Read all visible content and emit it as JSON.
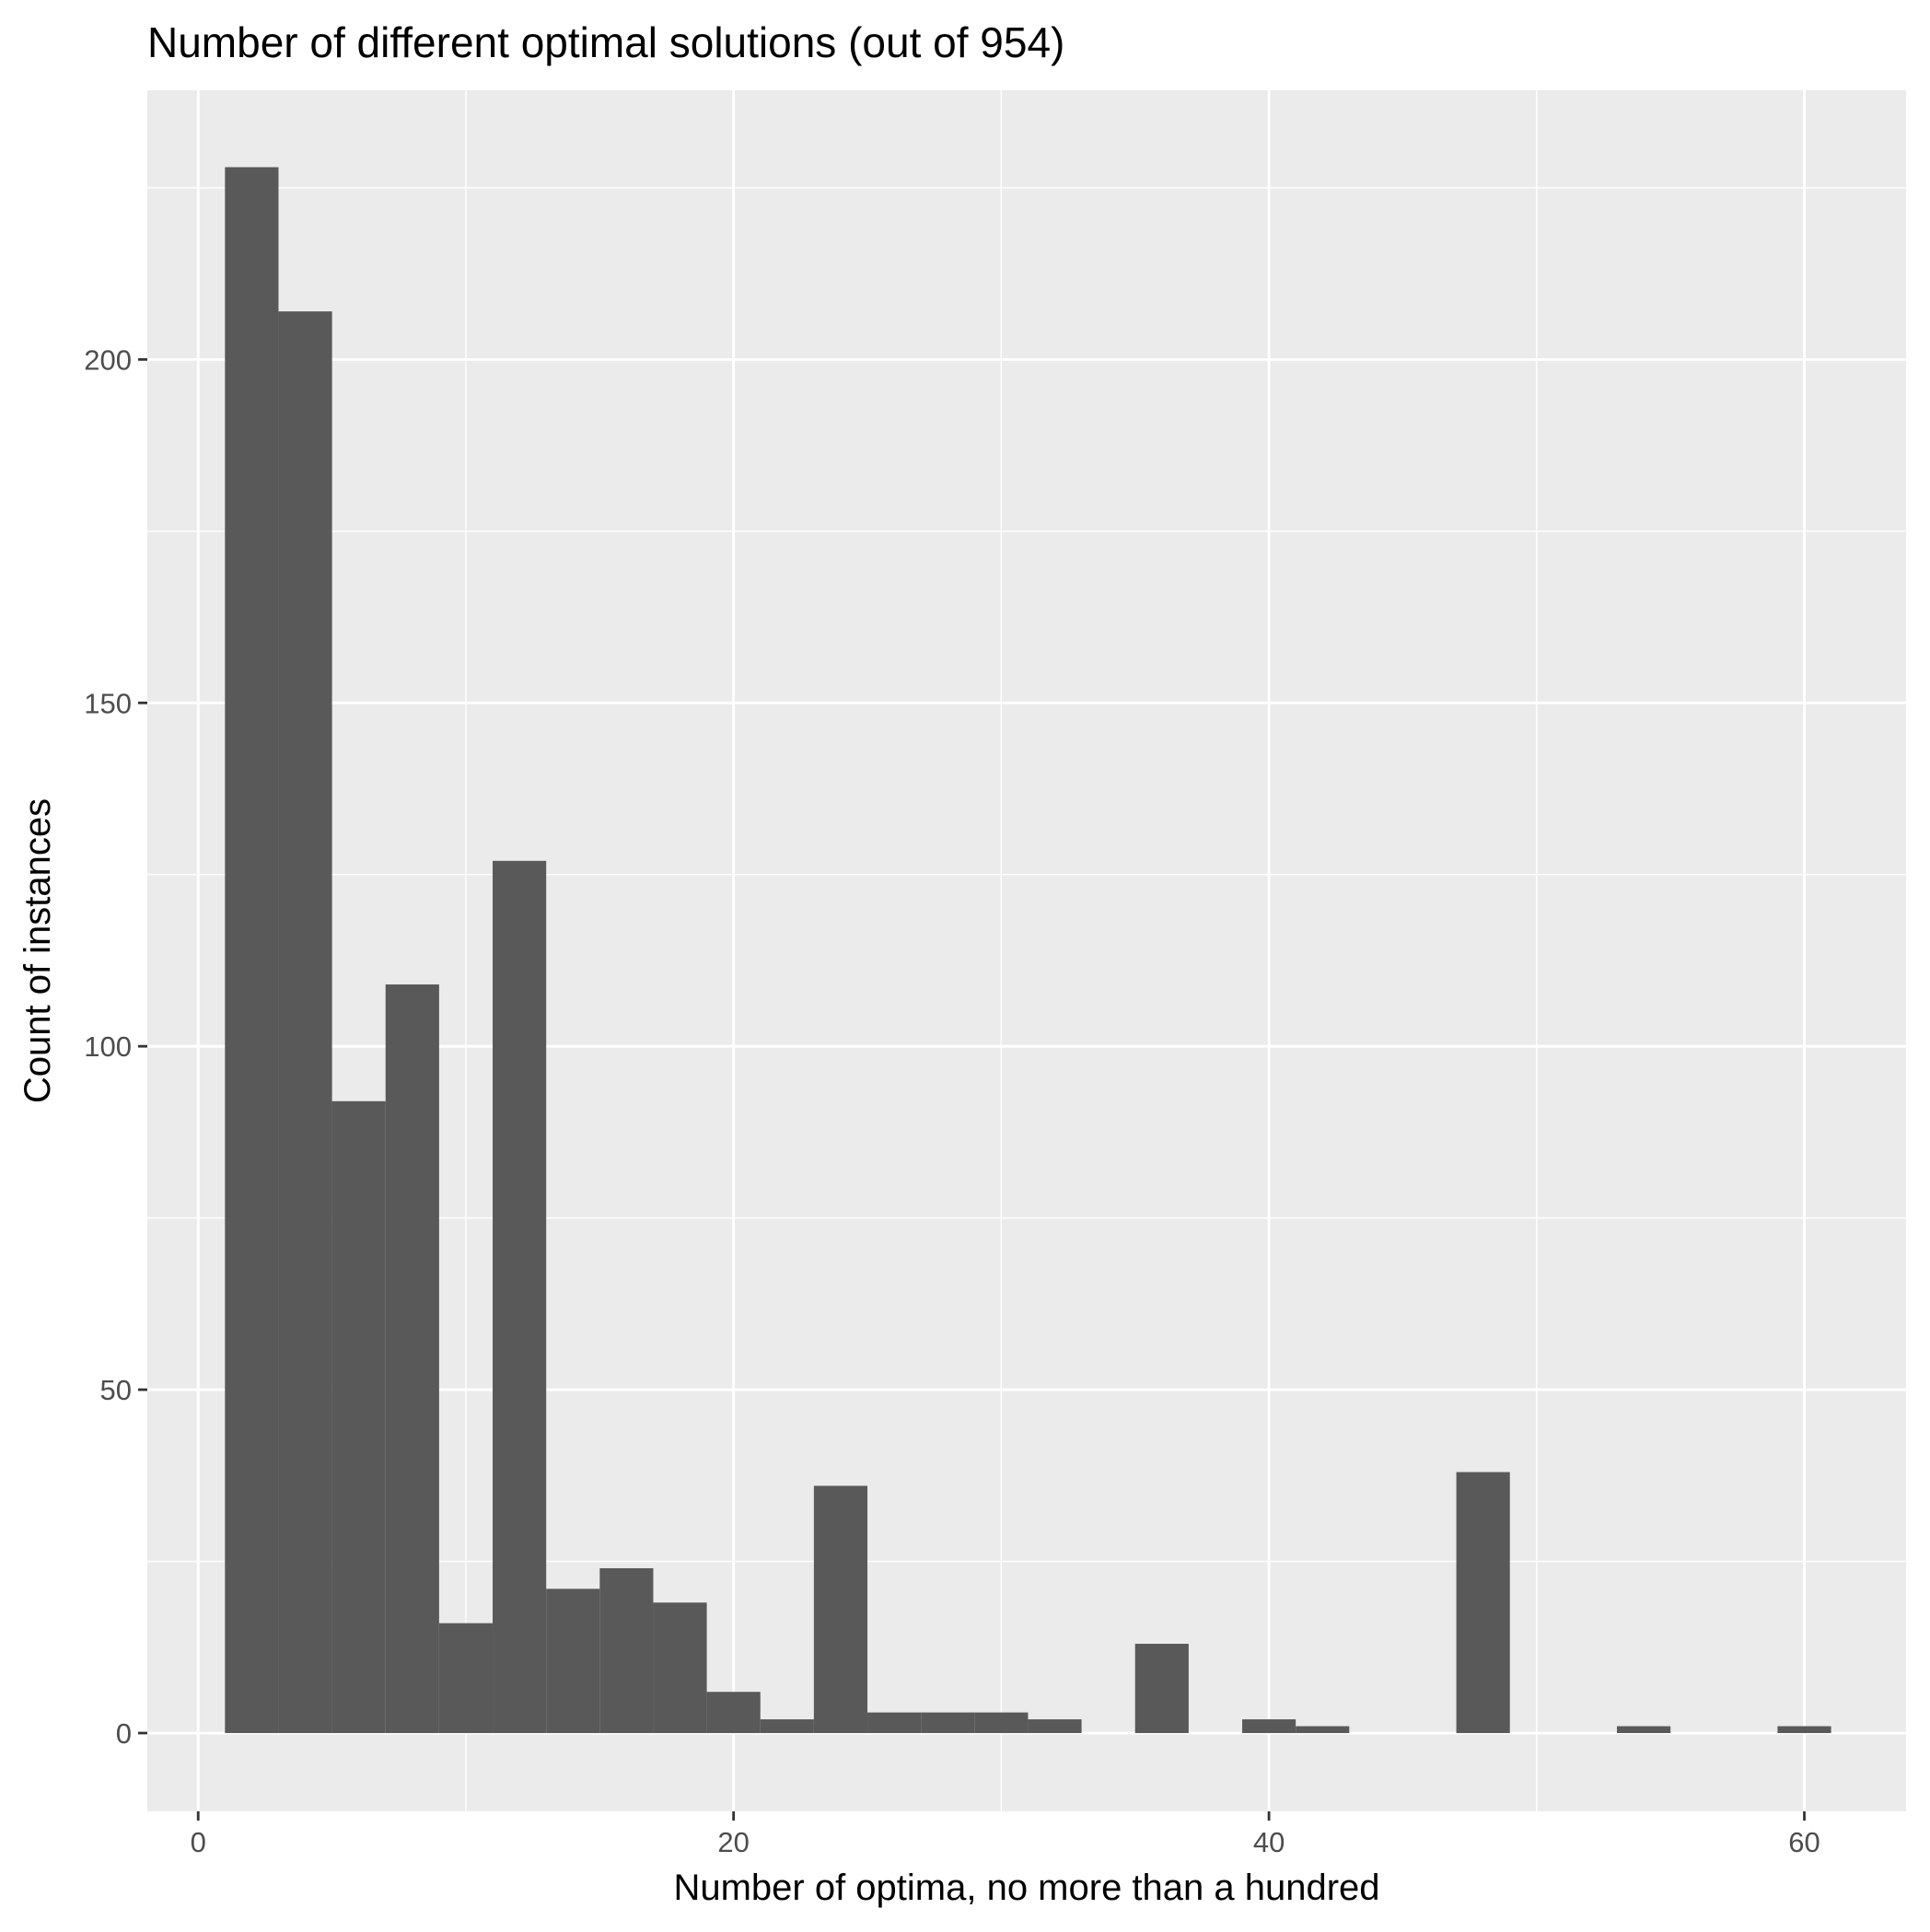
{
  "chart_data": {
    "type": "bar",
    "title": "Number of different optimal solutions (out of 954)",
    "xlabel": "Number of optima, no more than a hundred",
    "ylabel": "Count of instances",
    "xlim": [
      -1.9,
      63.8
    ],
    "ylim": [
      -11.4,
      239.2
    ],
    "x_ticks": [
      0,
      20,
      40,
      60
    ],
    "x_minor_ticks": [
      10,
      30,
      50
    ],
    "y_ticks": [
      0,
      50,
      100,
      150,
      200
    ],
    "y_minor_ticks": [
      25,
      75,
      125,
      175,
      225
    ],
    "bin_width": 2,
    "bins": [
      {
        "x": 2,
        "count": 228
      },
      {
        "x": 4,
        "count": 207
      },
      {
        "x": 6,
        "count": 92
      },
      {
        "x": 8,
        "count": 109
      },
      {
        "x": 10,
        "count": 16
      },
      {
        "x": 12,
        "count": 127
      },
      {
        "x": 14,
        "count": 21
      },
      {
        "x": 16,
        "count": 24
      },
      {
        "x": 18,
        "count": 19
      },
      {
        "x": 20,
        "count": 6
      },
      {
        "x": 22,
        "count": 2
      },
      {
        "x": 24,
        "count": 36
      },
      {
        "x": 26,
        "count": 3
      },
      {
        "x": 28,
        "count": 3
      },
      {
        "x": 30,
        "count": 3
      },
      {
        "x": 32,
        "count": 2
      },
      {
        "x": 34,
        "count": 0
      },
      {
        "x": 36,
        "count": 13
      },
      {
        "x": 38,
        "count": 0
      },
      {
        "x": 40,
        "count": 2
      },
      {
        "x": 42,
        "count": 1
      },
      {
        "x": 44,
        "count": 0
      },
      {
        "x": 46,
        "count": 0
      },
      {
        "x": 48,
        "count": 38
      },
      {
        "x": 50,
        "count": 0
      },
      {
        "x": 52,
        "count": 0
      },
      {
        "x": 54,
        "count": 1
      },
      {
        "x": 56,
        "count": 0
      },
      {
        "x": 58,
        "count": 0
      },
      {
        "x": 60,
        "count": 1
      }
    ],
    "grid": true,
    "colors": {
      "bar": "#595959",
      "panel": "#ebebeb",
      "grid": "#ffffff"
    }
  }
}
